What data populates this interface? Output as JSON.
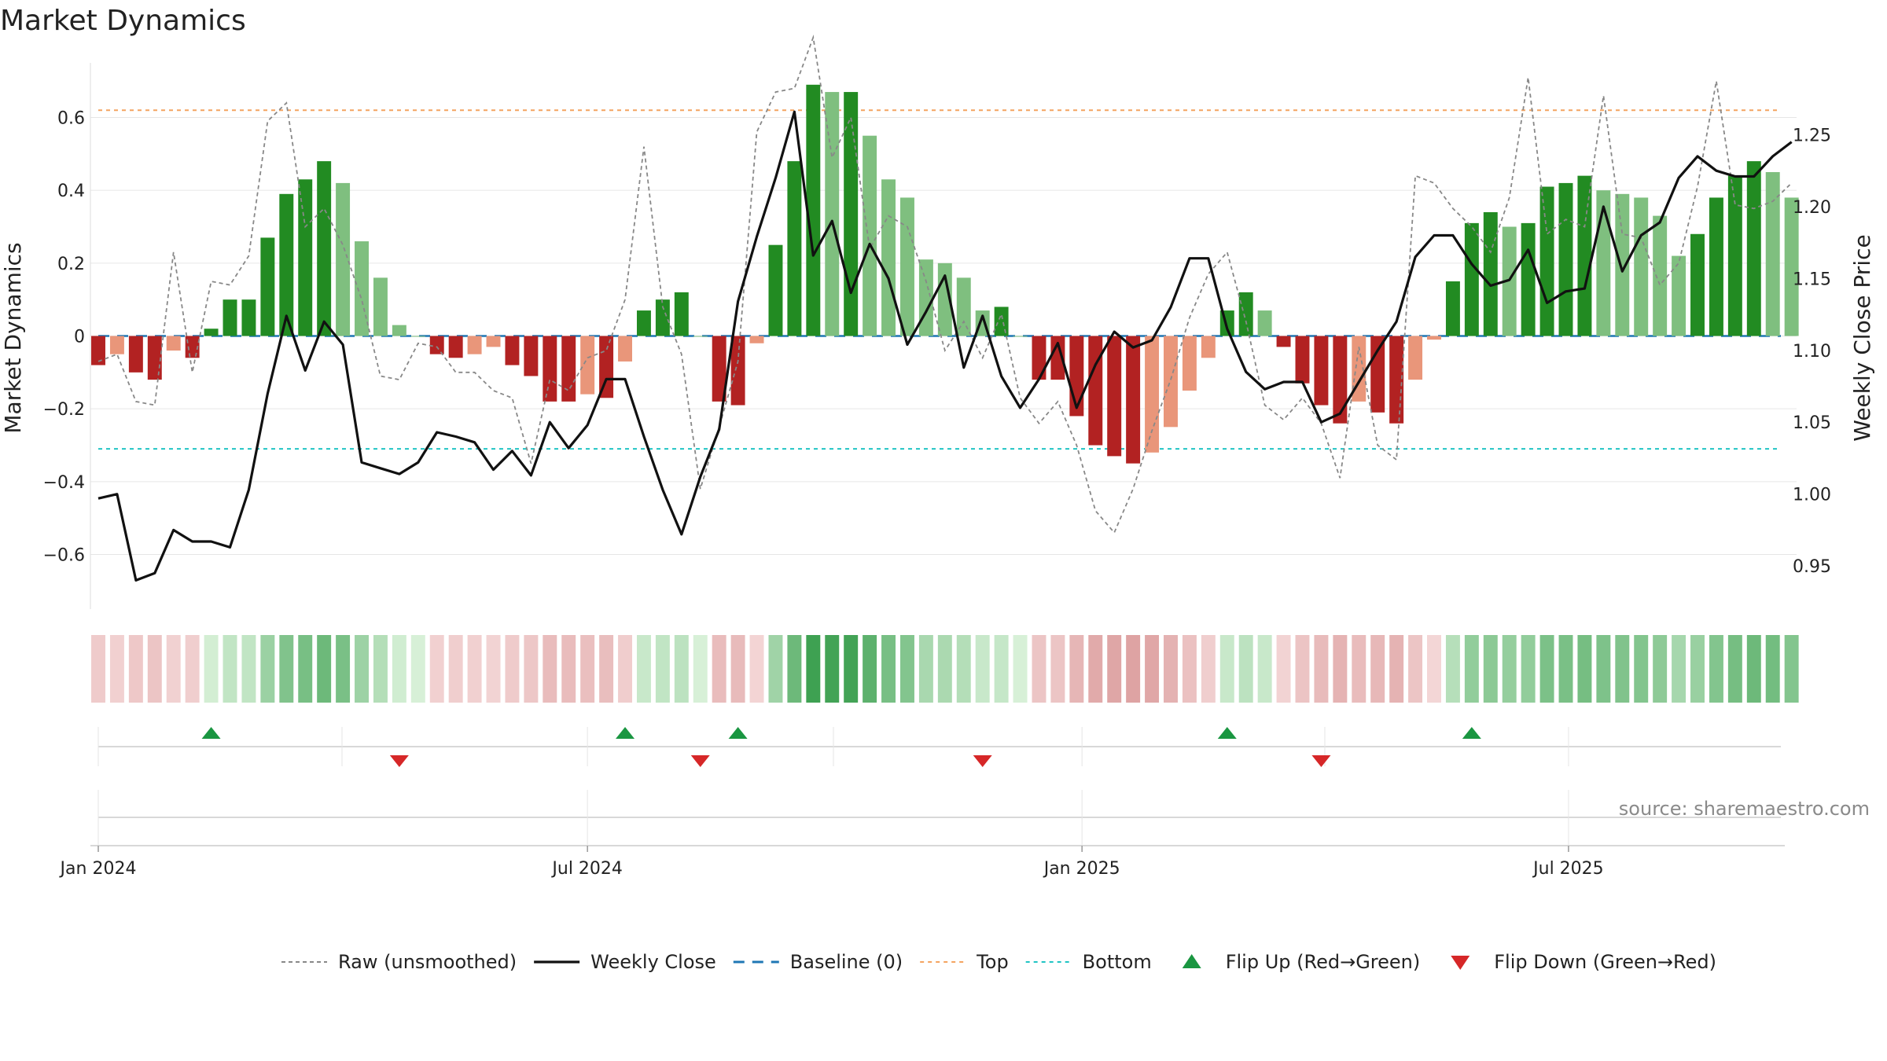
{
  "chart_data": {
    "type": "bar",
    "title": "Market Dynamics",
    "ylabel_left": "Market Dynamics",
    "ylabel_right": "Weekly Close Price",
    "source": "source: sharemaestro.com",
    "x_start": "2024-01-01",
    "x_step_days": 7,
    "x_ticks": [
      {
        "label": "Jan 2024",
        "date": "2024-01-01"
      },
      {
        "label": "Jul 2024",
        "date": "2024-07-01"
      },
      {
        "label": "Jan 2025",
        "date": "2025-01-01"
      },
      {
        "label": "Jul 2025",
        "date": "2025-07-01"
      }
    ],
    "y_left_range": [
      -0.75,
      0.75
    ],
    "y_left_ticks": [
      "−0.6",
      "−0.4",
      "−0.2",
      "0",
      "0.2",
      "0.4",
      "0.6"
    ],
    "y_right_range": [
      0.92,
      1.3
    ],
    "y_right_ticks": [
      "0.95",
      "1.00",
      "1.05",
      "1.10",
      "1.15",
      "1.20",
      "1.25"
    ],
    "top_line": 0.62,
    "bottom_line": -0.31,
    "baseline": 0,
    "grid": true,
    "legend_position": "bottom",
    "colors": {
      "strong_up": "#228b22",
      "weak_up": "#7fbf7f",
      "strong_down": "#b22222",
      "weak_down": "#e9967a",
      "close_line": "#111111",
      "raw_line": "#888888",
      "baseline": "#1f77b4",
      "top": "#f4a460",
      "bottom": "#20c4c4",
      "flip_up": "#1a9641",
      "flip_down": "#d62728"
    },
    "series": [
      {
        "name": "Market Dynamics",
        "values": [
          -0.08,
          -0.05,
          -0.1,
          -0.12,
          -0.04,
          -0.06,
          0.02,
          0.1,
          0.1,
          0.27,
          0.39,
          0.43,
          0.48,
          0.42,
          0.26,
          0.16,
          0.03,
          0,
          -0.05,
          -0.06,
          -0.05,
          -0.03,
          -0.08,
          -0.11,
          -0.18,
          -0.18,
          -0.16,
          -0.17,
          -0.07,
          0.07,
          0.1,
          0.12,
          0,
          -0.18,
          -0.19,
          -0.02,
          0.25,
          0.48,
          0.69,
          0.67,
          0.67,
          0.55,
          0.43,
          0.38,
          0.21,
          0.2,
          0.16,
          0.07,
          0.08,
          0,
          -0.12,
          -0.12,
          -0.22,
          -0.3,
          -0.33,
          -0.35,
          -0.32,
          -0.25,
          -0.15,
          -0.06,
          0.07,
          0.12,
          0.07,
          -0.03,
          -0.13,
          -0.19,
          -0.24,
          -0.18,
          -0.21,
          -0.24,
          -0.12,
          -0.01,
          0.15,
          0.31,
          0.34,
          0.3,
          0.31,
          0.41,
          0.42,
          0.44,
          0.4,
          0.39,
          0.38,
          0.33,
          0.22,
          0.28,
          0.38,
          0.44,
          0.48,
          0.45,
          0.38
        ]
      },
      {
        "name": "Raw (unsmoothed)",
        "values": [
          -0.07,
          -0.05,
          -0.18,
          -0.19,
          0.23,
          -0.1,
          0.15,
          0.14,
          0.22,
          0.59,
          0.64,
          0.3,
          0.35,
          0.25,
          0.1,
          -0.11,
          -0.12,
          -0.02,
          -0.03,
          -0.1,
          -0.1,
          -0.15,
          -0.17,
          -0.35,
          -0.12,
          -0.15,
          -0.06,
          -0.04,
          0.1,
          0.52,
          0.08,
          -0.05,
          -0.42,
          -0.25,
          -0.07,
          0.56,
          0.67,
          0.68,
          0.82,
          0.49,
          0.6,
          0.24,
          0.33,
          0.3,
          0.15,
          -0.04,
          0.04,
          -0.06,
          0.06,
          -0.17,
          -0.24,
          -0.18,
          -0.3,
          -0.48,
          -0.54,
          -0.42,
          -0.26,
          -0.12,
          0.05,
          0.17,
          0.23,
          0.04,
          -0.19,
          -0.23,
          -0.17,
          -0.24,
          -0.39,
          -0.03,
          -0.3,
          -0.34,
          0.44,
          0.42,
          0.35,
          0.3,
          0.23,
          0.38,
          0.71,
          0.28,
          0.32,
          0.3,
          0.66,
          0.28,
          0.27,
          0.14,
          0.2,
          0.41,
          0.7,
          0.36,
          0.35,
          0.37,
          0.42
        ]
      },
      {
        "name": "Weekly Close",
        "values": [
          0.997,
          1.0,
          0.94,
          0.945,
          0.975,
          0.967,
          0.967,
          0.963,
          1.003,
          1.07,
          1.124,
          1.086,
          1.12,
          1.104,
          1.022,
          1.018,
          1.014,
          1.022,
          1.043,
          1.04,
          1.036,
          1.017,
          1.03,
          1.013,
          1.05,
          1.032,
          1.048,
          1.08,
          1.08,
          1.04,
          1.003,
          0.972,
          1.012,
          1.045,
          1.134,
          1.179,
          1.22,
          1.266,
          1.166,
          1.19,
          1.14,
          1.174,
          1.15,
          1.104,
          1.127,
          1.152,
          1.088,
          1.124,
          1.082,
          1.06,
          1.08,
          1.105,
          1.06,
          1.09,
          1.113,
          1.102,
          1.107,
          1.13,
          1.164,
          1.164,
          1.115,
          1.085,
          1.073,
          1.078,
          1.078,
          1.05,
          1.056,
          1.078,
          1.1,
          1.12,
          1.165,
          1.18,
          1.18,
          1.16,
          1.145,
          1.149,
          1.17,
          1.133,
          1.141,
          1.143,
          1.2,
          1.155,
          1.18,
          1.189,
          1.22,
          1.235,
          1.225,
          1.221,
          1.221,
          1.235,
          1.245
        ]
      },
      {
        "name": "Baseline (0)",
        "values": []
      },
      {
        "name": "Top",
        "values": []
      },
      {
        "name": "Bottom",
        "values": []
      },
      {
        "name": "Flip Up (Red→Green)",
        "dates": [
          "2024-02-12",
          "2024-07-15",
          "2024-08-26",
          "2025-02-24",
          "2025-05-26"
        ]
      },
      {
        "name": "Flip Down (Green→Red)",
        "dates": [
          "2024-04-22",
          "2024-08-12",
          "2024-11-25",
          "2025-03-31"
        ]
      }
    ]
  }
}
